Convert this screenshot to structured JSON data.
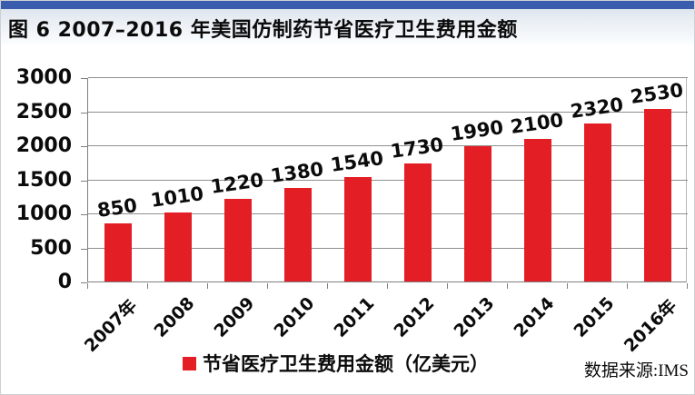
{
  "header": {
    "title": "图 6  2007–2016 年美国仿制药节省医疗卫生费用金额",
    "accent_color": "#3a5dae"
  },
  "chart_data": {
    "type": "bar",
    "title": "图 6  2007–2016 年美国仿制药节省医疗卫生费用金额",
    "categories": [
      "2007年",
      "2008",
      "2009",
      "2010",
      "2011",
      "2012",
      "2013",
      "2014",
      "2015",
      "2016年"
    ],
    "values": [
      850,
      1010,
      1220,
      1380,
      1540,
      1730,
      1990,
      2100,
      2320,
      2530
    ],
    "ylim": [
      0,
      3000
    ],
    "yticks": [
      0,
      500,
      1000,
      1500,
      2000,
      2500,
      3000
    ],
    "grid": "horizontal",
    "data_labels": true,
    "bar_color": "#e31e25",
    "gridline_color": "#8f8f8f",
    "legend": "节省医疗卫生费用金额（亿美元）",
    "legend_position": "bottom",
    "xlabel": "",
    "ylabel": ""
  },
  "footer": {
    "source_label": "数据来源:IMS"
  }
}
